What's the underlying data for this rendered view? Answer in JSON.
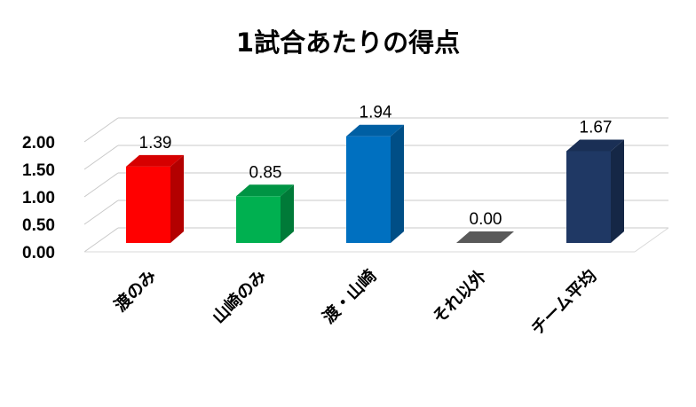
{
  "chart_data": {
    "type": "bar",
    "title": "1試合あたりの得点",
    "categories": [
      "渡のみ",
      "山崎のみ",
      "渡・山崎",
      "それ以外",
      "チーム平均"
    ],
    "values": [
      1.39,
      0.85,
      1.94,
      0.0,
      1.67
    ],
    "value_labels": [
      "1.39",
      "0.85",
      "1.94",
      "0.00",
      "1.67"
    ],
    "y_ticks": [
      "0.00",
      "0.50",
      "1.00",
      "1.50",
      "2.00"
    ],
    "ylim": [
      0,
      2.0
    ],
    "grid": true,
    "legend": "none",
    "style": "3d-column",
    "colors": [
      {
        "front": "#ff0000",
        "side": "#b30000",
        "top": "#d60000"
      },
      {
        "front": "#00b050",
        "side": "#007a38",
        "top": "#009444"
      },
      {
        "front": "#0070c0",
        "side": "#004e86",
        "top": "#005fa3"
      },
      {
        "front": "#595959",
        "side": "#3f3f3f",
        "top": "#6e6e6e"
      },
      {
        "front": "#1f3864",
        "side": "#152746",
        "top": "#1a2f55"
      }
    ]
  }
}
